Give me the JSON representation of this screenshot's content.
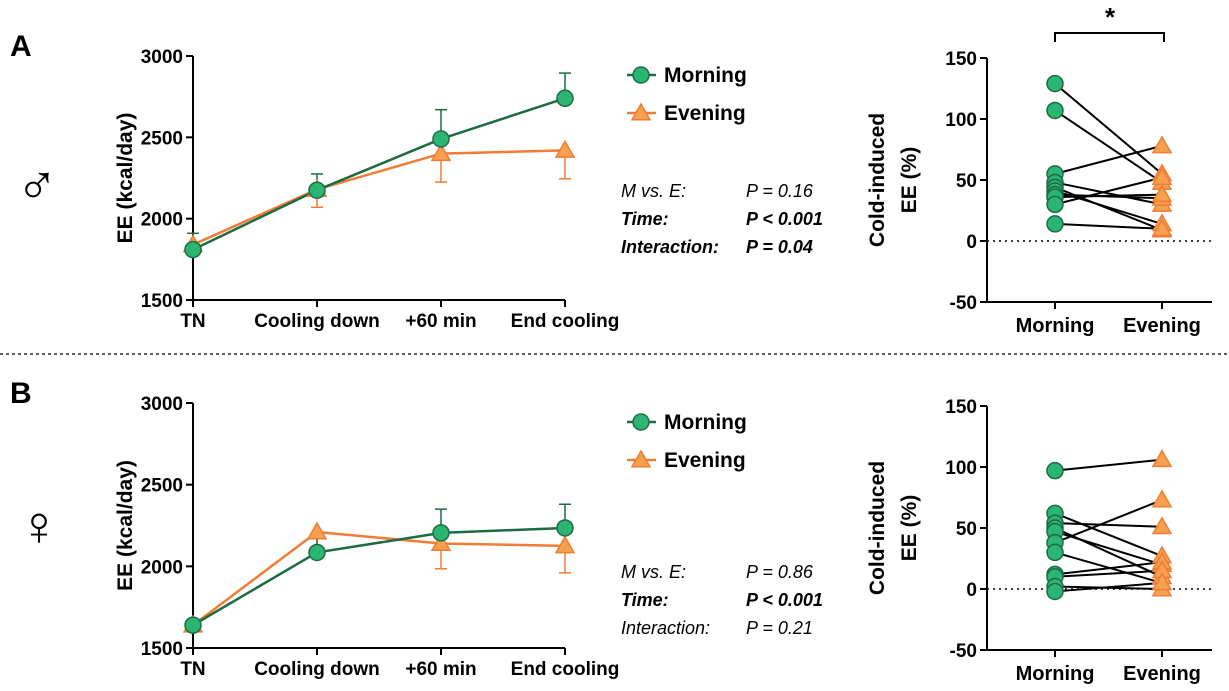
{
  "panels": [
    {
      "label": "A",
      "sex_symbol": "♂",
      "stats": [
        {
          "name": "M vs. E:",
          "value": "P = 0.16",
          "bold": false
        },
        {
          "name": "Time:",
          "value": "P < 0.001",
          "bold": true
        },
        {
          "name": "Interaction:",
          "value": "P = 0.04",
          "bold": true
        }
      ],
      "significance": "*"
    },
    {
      "label": "B",
      "sex_symbol": "♀",
      "stats": [
        {
          "name": "M vs. E:",
          "value": "P = 0.86",
          "bold": false
        },
        {
          "name": "Time:",
          "value": "P < 0.001",
          "bold": true
        },
        {
          "name": "Interaction:",
          "value": "P = 0.21",
          "bold": false
        }
      ],
      "significance": ""
    }
  ],
  "colors": {
    "morning_fill": "#2bb573",
    "morning_line": "#1e6b43",
    "evening_fill": "#f7a04e",
    "evening_line": "#f07c35"
  },
  "chart_data": [
    {
      "type": "line",
      "ylabel": "EE (kcal/day)",
      "categories": [
        "TN",
        "Cooling down",
        "+60 min",
        "End cooling"
      ],
      "ylim": [
        1500,
        3000
      ],
      "yticks": [
        1500,
        2000,
        2500,
        3000
      ],
      "series": [
        {
          "name": "Morning",
          "values": [
            1810,
            2175,
            2490,
            2740
          ],
          "err": [
            100,
            100,
            180,
            155
          ]
        },
        {
          "name": "Evening",
          "values": [
            1840,
            2180,
            2400,
            2420
          ],
          "err": [
            30,
            110,
            175,
            175
          ]
        }
      ],
      "legend": "top-right"
    },
    {
      "type": "scatter",
      "ylabel": "Cold-induced EE (%)",
      "categories": [
        "Morning",
        "Evening"
      ],
      "ylim": [
        -50,
        150
      ],
      "yticks": [
        -50,
        0,
        50,
        100,
        150
      ],
      "reference_line": 0,
      "pairs": [
        [
          129,
          55
        ],
        [
          107,
          48
        ],
        [
          55,
          78
        ],
        [
          48,
          30
        ],
        [
          44,
          9
        ],
        [
          41,
          14
        ],
        [
          38,
          35
        ],
        [
          36,
          38
        ],
        [
          30,
          52
        ],
        [
          14,
          10
        ]
      ]
    },
    {
      "type": "line",
      "ylabel": "EE (kcal/day)",
      "categories": [
        "TN",
        "Cooling down",
        "+60 min",
        "End cooling"
      ],
      "ylim": [
        1500,
        3000
      ],
      "yticks": [
        1500,
        2000,
        2500,
        3000
      ],
      "series": [
        {
          "name": "Morning",
          "values": [
            1640,
            2085,
            2205,
            2235
          ],
          "err": [
            0,
            110,
            145,
            145
          ]
        },
        {
          "name": "Evening",
          "values": [
            1640,
            2210,
            2140,
            2125
          ],
          "err": [
            0,
            130,
            155,
            165
          ]
        }
      ],
      "legend": "top-right"
    },
    {
      "type": "scatter",
      "ylabel": "Cold-induced EE (%)",
      "categories": [
        "Morning",
        "Evening"
      ],
      "ylim": [
        -50,
        150
      ],
      "yticks": [
        -50,
        0,
        50,
        100,
        150
      ],
      "reference_line": 0,
      "pairs": [
        [
          97,
          106
        ],
        [
          62,
          27
        ],
        [
          54,
          51
        ],
        [
          50,
          10
        ],
        [
          47,
          20
        ],
        [
          38,
          73
        ],
        [
          30,
          5
        ],
        [
          12,
          22
        ],
        [
          10,
          15
        ],
        [
          2,
          0
        ],
        [
          -2,
          5
        ]
      ]
    }
  ]
}
